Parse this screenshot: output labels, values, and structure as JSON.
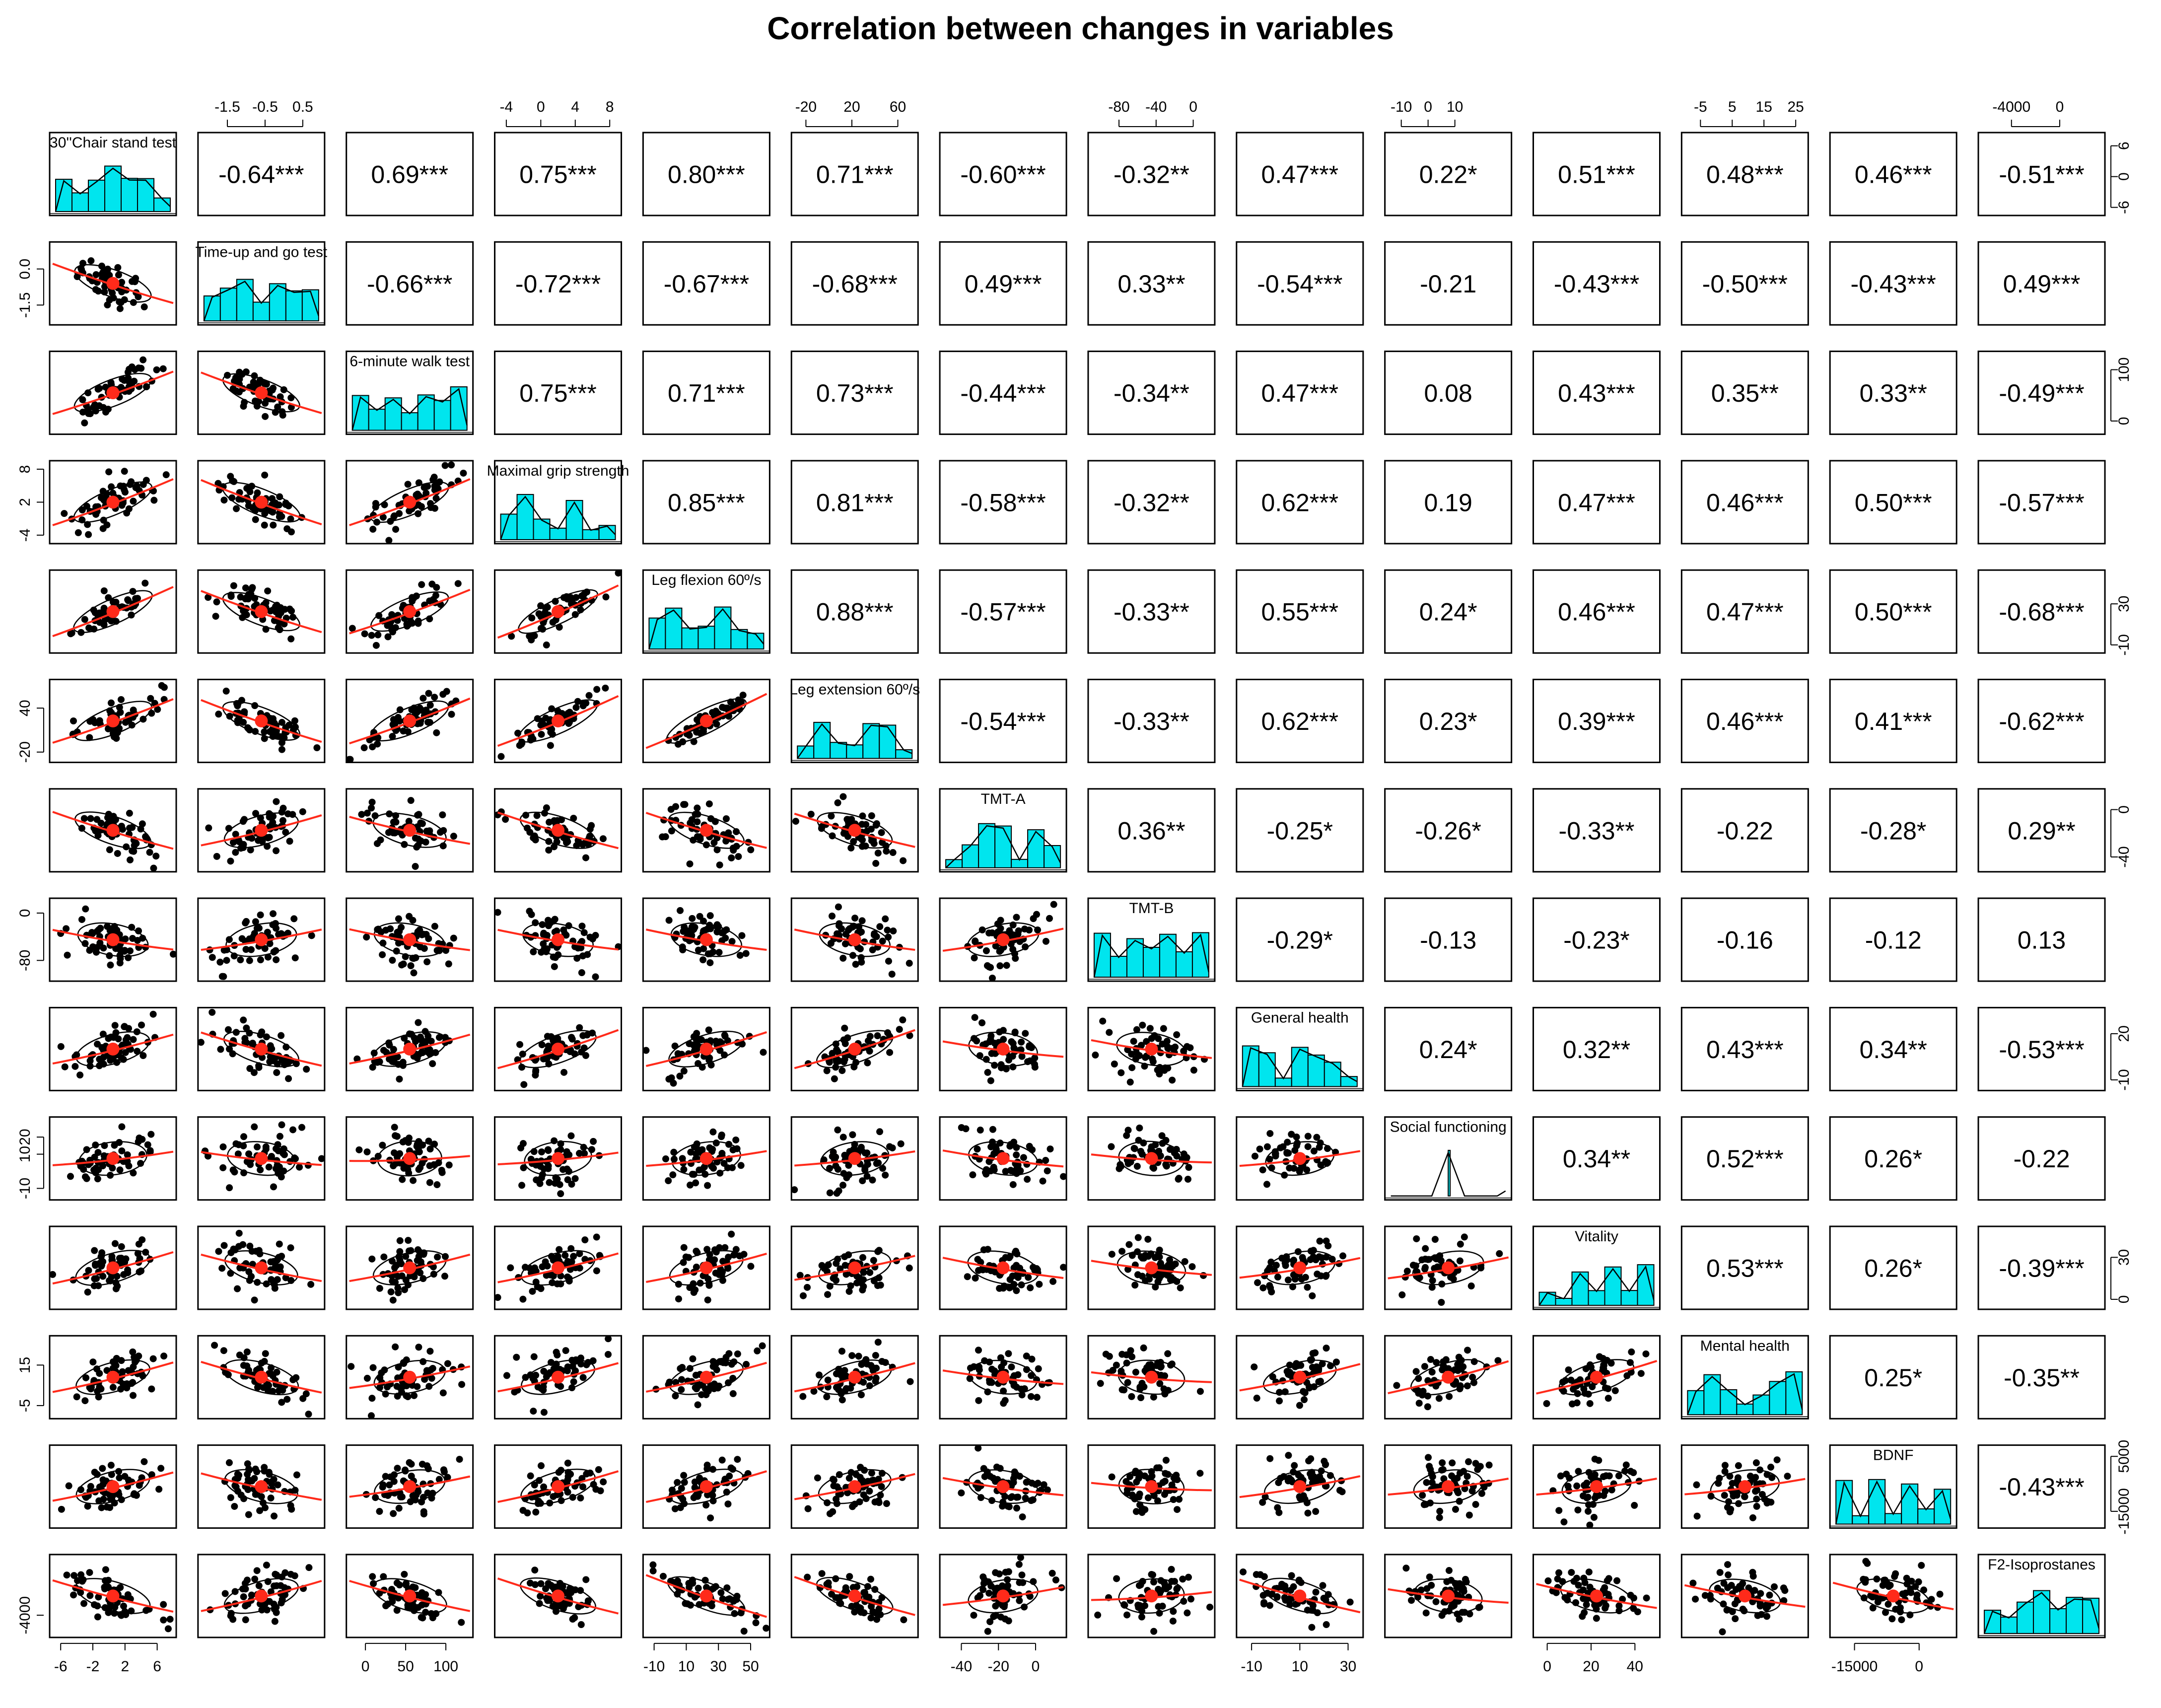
{
  "title": "Correlation between changes in variables",
  "colors": {
    "hist": "#00e5ee",
    "smooth": "#ff2a1a",
    "point": "#000000",
    "center": "#ff2a1a"
  },
  "chart_data": {
    "type": "scatterplot-matrix",
    "title": "Correlation between changes in variables",
    "variables": [
      "30''Chair stand test",
      "Time-up and go test",
      "6-minute walk test",
      "Maximal grip strength",
      "Leg flexion 60º/s",
      "Leg extension 60º/s",
      "TMT-A",
      "TMT-B",
      "General health",
      "Social functioning",
      "Vitality",
      "Mental health",
      "BDNF",
      "F2-Isoprostanes"
    ],
    "correlation_labels": [
      [
        null,
        "-0.64***",
        "0.69***",
        "0.75***",
        "0.80***",
        "0.71***",
        "-0.60***",
        "-0.32**",
        "0.47***",
        "0.22*",
        "0.51***",
        "0.48***",
        "0.46***",
        "-0.51***"
      ],
      [
        null,
        null,
        "-0.66***",
        "-0.72***",
        "-0.67***",
        "-0.68***",
        "0.49***",
        "0.33**",
        "-0.54***",
        "-0.21",
        "-0.43***",
        "-0.50***",
        "-0.43***",
        "0.49***"
      ],
      [
        null,
        null,
        null,
        "0.75***",
        "0.71***",
        "0.73***",
        "-0.44***",
        "-0.34**",
        "0.47***",
        "0.08",
        "0.43***",
        "0.35**",
        "0.33**",
        "-0.49***"
      ],
      [
        null,
        null,
        null,
        null,
        "0.85***",
        "0.81***",
        "-0.58***",
        "-0.32**",
        "0.62***",
        "0.19",
        "0.47***",
        "0.46***",
        "0.50***",
        "-0.57***"
      ],
      [
        null,
        null,
        null,
        null,
        null,
        "0.88***",
        "-0.57***",
        "-0.33**",
        "0.55***",
        "0.24*",
        "0.46***",
        "0.47***",
        "0.50***",
        "-0.68***"
      ],
      [
        null,
        null,
        null,
        null,
        null,
        null,
        "-0.54***",
        "-0.33**",
        "0.62***",
        "0.23*",
        "0.39***",
        "0.46***",
        "0.41***",
        "-0.62***"
      ],
      [
        null,
        null,
        null,
        null,
        null,
        null,
        null,
        "0.36**",
        "-0.25*",
        "-0.26*",
        "-0.33**",
        "-0.22",
        "-0.28*",
        "0.29**"
      ],
      [
        null,
        null,
        null,
        null,
        null,
        null,
        null,
        null,
        "-0.29*",
        "-0.13",
        "-0.23*",
        "-0.16",
        "-0.12",
        "0.13"
      ],
      [
        null,
        null,
        null,
        null,
        null,
        null,
        null,
        null,
        null,
        "0.24*",
        "0.32**",
        "0.43***",
        "0.34**",
        "-0.53***"
      ],
      [
        null,
        null,
        null,
        null,
        null,
        null,
        null,
        null,
        null,
        null,
        "0.34**",
        "0.52***",
        "0.26*",
        "-0.22"
      ],
      [
        null,
        null,
        null,
        null,
        null,
        null,
        null,
        null,
        null,
        null,
        null,
        "0.53***",
        "0.26*",
        "-0.39***"
      ],
      [
        null,
        null,
        null,
        null,
        null,
        null,
        null,
        null,
        null,
        null,
        null,
        null,
        "0.25*",
        "-0.35**"
      ],
      [
        null,
        null,
        null,
        null,
        null,
        null,
        null,
        null,
        null,
        null,
        null,
        null,
        null,
        "-0.43***"
      ],
      [
        null,
        null,
        null,
        null,
        null,
        null,
        null,
        null,
        null,
        null,
        null,
        null,
        null,
        null
      ]
    ],
    "axis_ranges": [
      [
        -7,
        8
      ],
      [
        -2.2,
        1.0
      ],
      [
        -20,
        130
      ],
      [
        -5,
        9
      ],
      [
        -15,
        60
      ],
      [
        -30,
        75
      ],
      [
        -50,
        15
      ],
      [
        -110,
        20
      ],
      [
        -15,
        35
      ],
      [
        -15,
        30
      ],
      [
        -5,
        50
      ],
      [
        -10,
        28
      ],
      [
        -20000,
        8000
      ],
      [
        -6500,
        3500
      ]
    ],
    "ticks": {
      "top": [
        {
          "col": 1,
          "labels": [
            "-1.5",
            "-0.5",
            "0.5"
          ],
          "values": [
            -1.5,
            -0.5,
            0.5
          ]
        },
        {
          "col": 3,
          "labels": [
            "-4",
            "0",
            "4",
            "8"
          ],
          "values": [
            -4,
            0,
            4,
            8
          ]
        },
        {
          "col": 5,
          "labels": [
            "-20",
            "20",
            "60"
          ],
          "values": [
            -20,
            20,
            60
          ]
        },
        {
          "col": 7,
          "labels": [
            "-80",
            "-40",
            "0"
          ],
          "values": [
            -80,
            -40,
            0
          ]
        },
        {
          "col": 9,
          "labels": [
            "-10",
            "0",
            "10"
          ],
          "values": [
            -10,
            0,
            10
          ]
        },
        {
          "col": 11,
          "labels": [
            "-5",
            "5",
            "15",
            "25"
          ],
          "values": [
            -5,
            5,
            15,
            25
          ]
        },
        {
          "col": 13,
          "labels": [
            "-4000",
            "0"
          ],
          "values": [
            -4000,
            0
          ]
        }
      ],
      "bottom": [
        {
          "col": 0,
          "labels": [
            "-6",
            "-2",
            "2",
            "6"
          ],
          "values": [
            -6,
            -2,
            2,
            6
          ]
        },
        {
          "col": 2,
          "labels": [
            "0",
            "50",
            "100"
          ],
          "values": [
            0,
            50,
            100
          ]
        },
        {
          "col": 4,
          "labels": [
            "-10",
            "10",
            "30",
            "50"
          ],
          "values": [
            -10,
            10,
            30,
            50
          ]
        },
        {
          "col": 6,
          "labels": [
            "-40",
            "-20",
            "0"
          ],
          "values": [
            -40,
            -20,
            0
          ]
        },
        {
          "col": 8,
          "labels": [
            "-10",
            "10",
            "30"
          ],
          "values": [
            -10,
            10,
            30
          ]
        },
        {
          "col": 10,
          "labels": [
            "0",
            "20",
            "40"
          ],
          "values": [
            0,
            20,
            40
          ]
        },
        {
          "col": 12,
          "labels": [
            "-15000",
            "0"
          ],
          "values": [
            -15000,
            0
          ]
        }
      ],
      "left": [
        {
          "row": 1,
          "labels": [
            "-1.5",
            "0.0"
          ],
          "values": [
            -1.5,
            0.0
          ]
        },
        {
          "row": 3,
          "labels": [
            "-4",
            "2",
            "8"
          ],
          "values": [
            -4,
            2,
            8
          ]
        },
        {
          "row": 5,
          "labels": [
            "-20",
            "40"
          ],
          "values": [
            -20,
            40
          ]
        },
        {
          "row": 7,
          "labels": [
            "-80",
            "0"
          ],
          "values": [
            -80,
            0
          ]
        },
        {
          "row": 9,
          "labels": [
            "-10",
            "10",
            "20"
          ],
          "values": [
            -10,
            10,
            20
          ]
        },
        {
          "row": 11,
          "labels": [
            "-5",
            "15"
          ],
          "values": [
            -5,
            15
          ]
        },
        {
          "row": 13,
          "labels": [
            "-4000"
          ],
          "values": [
            -4000
          ]
        }
      ],
      "right": [
        {
          "row": 0,
          "labels": [
            "-6",
            "0",
            "6"
          ],
          "values": [
            -6,
            0,
            6
          ]
        },
        {
          "row": 2,
          "labels": [
            "0",
            "100"
          ],
          "values": [
            0,
            100
          ]
        },
        {
          "row": 4,
          "labels": [
            "-10",
            "30"
          ],
          "values": [
            -10,
            30
          ]
        },
        {
          "row": 6,
          "labels": [
            "-40",
            "0"
          ],
          "values": [
            -40,
            0
          ]
        },
        {
          "row": 8,
          "labels": [
            "-10",
            "20"
          ],
          "values": [
            -10,
            20
          ]
        },
        {
          "row": 10,
          "labels": [
            "0",
            "30"
          ],
          "values": [
            0,
            30
          ]
        },
        {
          "row": 12,
          "labels": [
            "-15000",
            "5000"
          ],
          "values": [
            -15000,
            5000
          ]
        }
      ]
    }
  }
}
